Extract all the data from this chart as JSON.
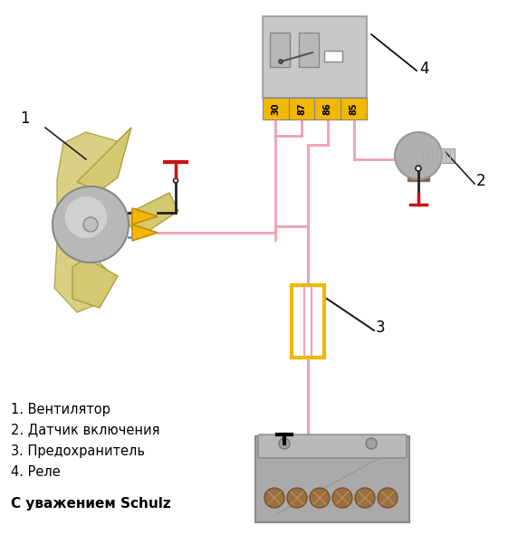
{
  "bg_color": "#ffffff",
  "legend_items": [
    "1. Вентилятор",
    "2. Датчик включения",
    "3. Предохранитель",
    "4. Реле"
  ],
  "signature": "С уважением Schulz",
  "pink": "#f0a0b0",
  "relay_gray": "#c8c8c8",
  "pin_yellow": "#f0b800",
  "fuse_yellow": "#f0b800",
  "ground_red": "#cc1111",
  "blue_wire": "#5599cc",
  "black_wire": "#222222",
  "blade_fill": "#d4c870",
  "blade_edge": "#a8a040",
  "motor_gray": "#aaaaaa",
  "sensor_gray": "#b0b0b0",
  "battery_gray": "#aaaaaa",
  "cell_brown": "#9a7040"
}
